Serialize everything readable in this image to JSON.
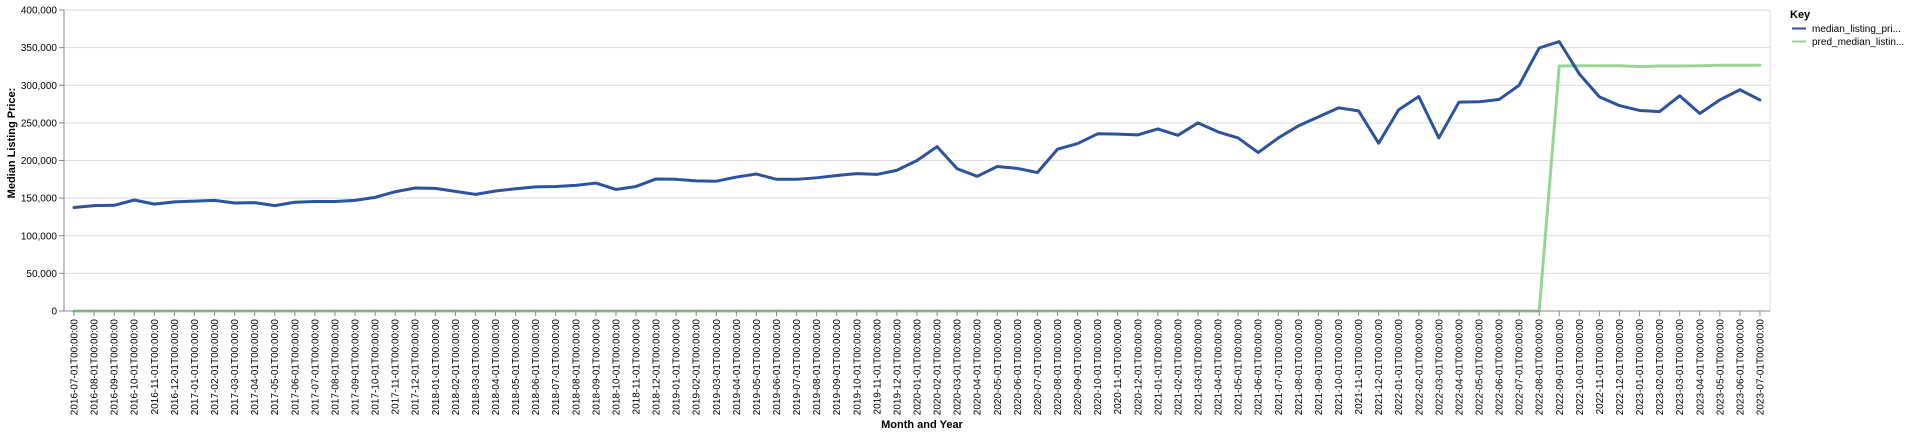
{
  "chart_data": {
    "type": "line",
    "xlabel": "Month and Year",
    "ylabel": "Median Listing Price:",
    "ylim": [
      0,
      400000
    ],
    "yticks": [
      0,
      50000,
      100000,
      150000,
      200000,
      250000,
      300000,
      350000,
      400000
    ],
    "ytick_labels": [
      "0",
      "50,000",
      "100,000",
      "150,000",
      "200,000",
      "250,000",
      "300,000",
      "350,000",
      "400,000"
    ],
    "grid": true,
    "legend": {
      "title": "Key",
      "position": "top-right"
    },
    "x": [
      "2016-07-01T00:00:00",
      "2016-08-01T00:00:00",
      "2016-09-01T00:00:00",
      "2016-10-01T00:00:00",
      "2016-11-01T00:00:00",
      "2016-12-01T00:00:00",
      "2017-01-01T00:00:00",
      "2017-02-01T00:00:00",
      "2017-03-01T00:00:00",
      "2017-04-01T00:00:00",
      "2017-05-01T00:00:00",
      "2017-06-01T00:00:00",
      "2017-07-01T00:00:00",
      "2017-08-01T00:00:00",
      "2017-09-01T00:00:00",
      "2017-10-01T00:00:00",
      "2017-11-01T00:00:00",
      "2017-12-01T00:00:00",
      "2018-01-01T00:00:00",
      "2018-02-01T00:00:00",
      "2018-03-01T00:00:00",
      "2018-04-01T00:00:00",
      "2018-05-01T00:00:00",
      "2018-06-01T00:00:00",
      "2018-07-01T00:00:00",
      "2018-08-01T00:00:00",
      "2018-09-01T00:00:00",
      "2018-10-01T00:00:00",
      "2018-11-01T00:00:00",
      "2018-12-01T00:00:00",
      "2019-01-01T00:00:00",
      "2019-02-01T00:00:00",
      "2019-03-01T00:00:00",
      "2019-04-01T00:00:00",
      "2019-05-01T00:00:00",
      "2019-06-01T00:00:00",
      "2019-07-01T00:00:00",
      "2019-08-01T00:00:00",
      "2019-09-01T00:00:00",
      "2019-10-01T00:00:00",
      "2019-11-01T00:00:00",
      "2019-12-01T00:00:00",
      "2020-01-01T00:00:00",
      "2020-02-01T00:00:00",
      "2020-03-01T00:00:00",
      "2020-04-01T00:00:00",
      "2020-05-01T00:00:00",
      "2020-06-01T00:00:00",
      "2020-07-01T00:00:00",
      "2020-08-01T00:00:00",
      "2020-09-01T00:00:00",
      "2020-10-01T00:00:00",
      "2020-11-01T00:00:00",
      "2020-12-01T00:00:00",
      "2021-01-01T00:00:00",
      "2021-02-01T00:00:00",
      "2021-03-01T00:00:00",
      "2021-04-01T00:00:00",
      "2021-05-01T00:00:00",
      "2021-06-01T00:00:00",
      "2021-07-01T00:00:00",
      "2021-08-01T00:00:00",
      "2021-09-01T00:00:00",
      "2021-10-01T00:00:00",
      "2021-11-01T00:00:00",
      "2021-12-01T00:00:00",
      "2022-01-01T00:00:00",
      "2022-02-01T00:00:00",
      "2022-03-01T00:00:00",
      "2022-04-01T00:00:00",
      "2022-05-01T00:00:00",
      "2022-06-01T00:00:00",
      "2022-07-01T00:00:00",
      "2022-08-01T00:00:00",
      "2022-09-01T00:00:00",
      "2022-10-01T00:00:00",
      "2022-11-01T00:00:00",
      "2022-12-01T00:00:00",
      "2023-01-01T00:00:00",
      "2023-02-01T00:00:00",
      "2023-03-01T00:00:00",
      "2023-04-01T00:00:00",
      "2023-05-01T00:00:00",
      "2023-06-01T00:00:00",
      "2023-07-01T00:00:00"
    ],
    "series": [
      {
        "name": "median_listing_pri...",
        "color": "#2c539e",
        "values": [
          137500,
          140000,
          140500,
          147500,
          142000,
          145000,
          146000,
          147000,
          143500,
          144000,
          140000,
          144500,
          145500,
          145500,
          147000,
          151000,
          158500,
          163500,
          163000,
          159000,
          155000,
          159500,
          162500,
          165000,
          165500,
          167000,
          170000,
          161500,
          165500,
          175500,
          175000,
          173000,
          172500,
          178000,
          182000,
          175000,
          175000,
          177000,
          180000,
          182500,
          181500,
          187000,
          200000,
          218500,
          189000,
          179000,
          192000,
          189500,
          184000,
          215000,
          222500,
          235500,
          235000,
          234000,
          242000,
          233500,
          250000,
          238000,
          230000,
          210500,
          230000,
          246000,
          258000,
          270000,
          266000,
          223000,
          267500,
          285000,
          230000,
          277500,
          278000,
          281000,
          300000,
          349500,
          358000,
          315000,
          284500,
          273000,
          266500,
          265000,
          286000,
          262500,
          280500,
          294000,
          280500
        ]
      },
      {
        "name": "pred_median_listin...",
        "color": "#98d594",
        "values": [
          0,
          0,
          0,
          0,
          0,
          0,
          0,
          0,
          0,
          0,
          0,
          0,
          0,
          0,
          0,
          0,
          0,
          0,
          0,
          0,
          0,
          0,
          0,
          0,
          0,
          0,
          0,
          0,
          0,
          0,
          0,
          0,
          0,
          0,
          0,
          0,
          0,
          0,
          0,
          0,
          0,
          0,
          0,
          0,
          0,
          0,
          0,
          0,
          0,
          0,
          0,
          0,
          0,
          0,
          0,
          0,
          0,
          0,
          0,
          0,
          0,
          0,
          0,
          0,
          0,
          0,
          0,
          0,
          0,
          0,
          0,
          0,
          0,
          0,
          325500,
          326000,
          326000,
          326000,
          325000,
          325500,
          325500,
          326000,
          326500,
          326500,
          326500
        ]
      }
    ]
  }
}
